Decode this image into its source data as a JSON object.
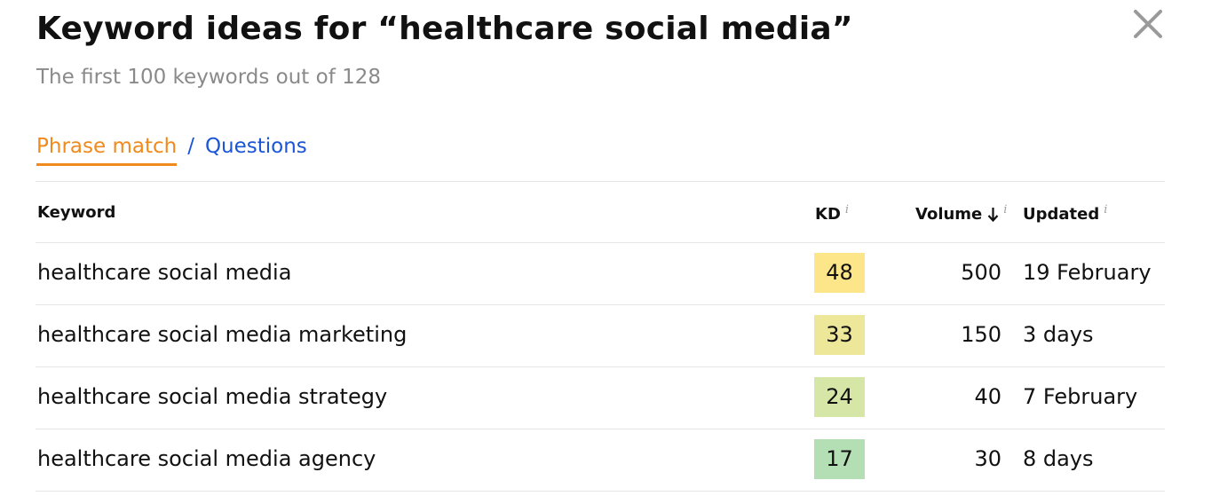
{
  "header": {
    "title": "Keyword ideas for “healthcare social media”",
    "subtitle": "The first 100 keywords out of 128",
    "close_icon": "close-icon"
  },
  "tabs": {
    "active": "Phrase match",
    "separator": "/",
    "other": "Questions",
    "active_color": "#f18a1c",
    "link_color": "#1a55d8"
  },
  "table": {
    "columns": {
      "keyword": "Keyword",
      "kd": "KD",
      "volume": "Volume",
      "updated": "Updated",
      "info_glyph": "i",
      "sort_icon": "arrow-down-icon"
    },
    "rows": [
      {
        "keyword": "healthcare social media",
        "kd": "48",
        "kd_color": "#fde68a",
        "volume": "500",
        "updated": "19 February"
      },
      {
        "keyword": "healthcare social media marketing",
        "kd": "33",
        "kd_color": "#ede79a",
        "volume": "150",
        "updated": "3 days"
      },
      {
        "keyword": "healthcare social media strategy",
        "kd": "24",
        "kd_color": "#d6e6a6",
        "volume": "40",
        "updated": "7 February"
      },
      {
        "keyword": "healthcare social media agency",
        "kd": "17",
        "kd_color": "#b4dfb4",
        "volume": "30",
        "updated": "8 days"
      }
    ]
  }
}
